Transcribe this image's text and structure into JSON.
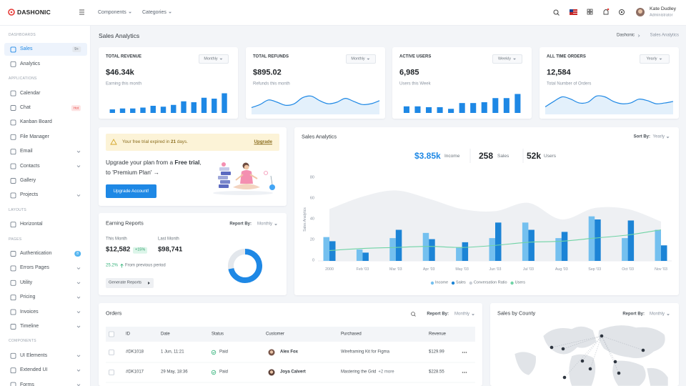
{
  "header": {
    "brand": "DASHONIC",
    "menus": [
      "Components",
      "Categories"
    ],
    "user_name": "Kate Dudley",
    "user_role": "Administrator"
  },
  "sidebar": [
    {
      "section": "DASHBOARDS",
      "items": [
        {
          "label": "Sales",
          "badge": "9+",
          "active": true
        },
        {
          "label": "Analytics"
        }
      ]
    },
    {
      "section": "APPLICATIONS",
      "items": [
        {
          "label": "Calendar"
        },
        {
          "label": "Chat",
          "badge": "Hot"
        },
        {
          "label": "Kanban Board"
        },
        {
          "label": "File Manager"
        },
        {
          "label": "Email",
          "expandable": true
        },
        {
          "label": "Contacts",
          "expandable": true
        },
        {
          "label": "Gallery"
        },
        {
          "label": "Projects",
          "expandable": true
        }
      ]
    },
    {
      "section": "LAYOUTS",
      "items": [
        {
          "label": "Horizontal"
        }
      ]
    },
    {
      "section": "PAGES",
      "items": [
        {
          "label": "Authentication",
          "badge": "8"
        },
        {
          "label": "Errors Pages",
          "expandable": true
        },
        {
          "label": "Utility",
          "expandable": true
        },
        {
          "label": "Pricing",
          "expandable": true
        },
        {
          "label": "Invoices",
          "expandable": true
        },
        {
          "label": "Timeline",
          "expandable": true
        }
      ]
    },
    {
      "section": "COMPONENTS",
      "items": [
        {
          "label": "UI Elements",
          "expandable": true
        },
        {
          "label": "Extended UI",
          "expandable": true
        },
        {
          "label": "Forms",
          "expandable": true
        }
      ]
    }
  ],
  "page": {
    "title": "Sales Analytics",
    "breadcrumb": [
      "Dashonic",
      "Sales Analytics"
    ]
  },
  "stats": [
    {
      "title": "TOTAL REVENUE",
      "period": "Monthly",
      "value": "$46.34k",
      "caption": "Earning this month"
    },
    {
      "title": "TOTAL REFUNDS",
      "period": "Monthly",
      "value": "$895.02",
      "caption": "Refunds this month"
    },
    {
      "title": "ACTIVE USERS",
      "period": "Weekly",
      "value": "6,985",
      "caption": "Users this Week"
    },
    {
      "title": "ALL TIME ORDERS",
      "period": "Yearly",
      "value": "12,584",
      "caption": "Total Number of Orders"
    }
  ],
  "trial": {
    "notice": [
      "Your free trial expired in ",
      "21",
      " days."
    ],
    "link": "Upgrade",
    "heading": [
      "Upgrade your plan from a ",
      "Free trial",
      ", to 'Premium Plan' →"
    ],
    "button": "Upgrade Account!"
  },
  "earnings": {
    "title": "Earning Reports",
    "report_label": "Report By:",
    "report_period": "Monthly",
    "this_month_label": "This Month",
    "this_month": "$12,582",
    "change": "+15%",
    "last_month_label": "Last Month",
    "last_month": "$98,741",
    "growth": "25.2%",
    "growth_caption": "From previous period",
    "button": "Generate Reports"
  },
  "sales": {
    "sort_label": "Sort By:",
    "sort": "Yearly",
    "summary": [
      {
        "value": "$3.85k",
        "label": "Income"
      },
      {
        "value": "258",
        "label": "Sales"
      },
      {
        "value": "52k",
        "label": "Users"
      }
    ]
  },
  "orders": {
    "title": "Orders",
    "report_label": "Report By:",
    "report_period": "Monthly",
    "columns": [
      "ID",
      "Date",
      "Status",
      "Customer",
      "Purchased",
      "Revenue"
    ],
    "rows": [
      {
        "id": "#DK1018",
        "date": "1 Jun, 11:21",
        "status": "Paid",
        "customer": "Alex Fox",
        "purchased": "Wireframing Kit for Figma",
        "revenue": "$129.99"
      },
      {
        "id": "#DK1017",
        "date": "29 May, 18:36",
        "status": "Paid",
        "customer": "Joya Calvert",
        "purchased": "Mastering the Grid",
        "more": "+2 more",
        "revenue": "$228.55"
      }
    ]
  },
  "county": {
    "title": "Sales by County",
    "report_label": "Report By:",
    "report_period": "Monthly"
  },
  "chart_data": [
    {
      "type": "bar",
      "values": [
        4,
        5,
        5,
        6,
        8,
        7,
        9,
        13,
        12,
        17,
        16,
        22
      ],
      "ylim": [
        0,
        24
      ],
      "color": "#1e88e5"
    },
    {
      "type": "area",
      "values": [
        7,
        11,
        17,
        14,
        10,
        12,
        20,
        22,
        16,
        12,
        14,
        19,
        15,
        11,
        12,
        16
      ],
      "ylim": [
        0,
        28
      ],
      "color": "#1e88e5"
    },
    {
      "type": "bar",
      "values": [
        8,
        8,
        7,
        7,
        5,
        12,
        12,
        13,
        18,
        18,
        23
      ],
      "ylim": [
        0,
        26
      ],
      "color": "#1e88e5"
    },
    {
      "type": "area",
      "values": [
        8,
        15,
        21,
        18,
        13,
        14,
        22,
        21,
        15,
        12,
        13,
        18,
        16,
        12,
        13,
        15
      ],
      "ylim": [
        0,
        28
      ],
      "color": "#1e88e5"
    },
    {
      "type": "mixed",
      "title": "Sales Analytics",
      "ylabel": "Sales Analytics",
      "categories": [
        "2000",
        "Feb '03",
        "Mar '03",
        "Apr '03",
        "May '03",
        "Jun '03",
        "Jul '03",
        "Aug '03",
        "Sep '03",
        "Oct '03",
        "Nov '03"
      ],
      "ylim": [
        0,
        80
      ],
      "yticks": [
        0,
        20,
        40,
        60,
        80
      ],
      "grid": false,
      "legend": "bottom",
      "series": [
        {
          "name": "Income",
          "type": "bar",
          "color": "#74c0ef",
          "values": [
            23,
            11,
            22,
            27,
            13,
            22,
            37,
            22,
            43,
            22,
            30
          ]
        },
        {
          "name": "Sales",
          "type": "bar",
          "color": "#1c84d6",
          "values": [
            19,
            8,
            30,
            21,
            18,
            37,
            30,
            28,
            40,
            39,
            15
          ]
        },
        {
          "name": "Conversation Ratio",
          "type": "area",
          "color": "#eef0f3",
          "values": [
            50,
            62,
            68,
            60,
            50,
            48,
            56,
            40,
            51,
            50,
            38
          ]
        },
        {
          "name": "Users",
          "type": "line",
          "color": "#6fd3a5",
          "values": [
            10,
            12,
            13,
            14,
            13,
            15,
            18,
            19,
            22,
            25,
            30
          ]
        }
      ]
    },
    {
      "type": "pie",
      "donut": true,
      "values": [
        72,
        28
      ],
      "colors": [
        "#1e88e5",
        "#e3e7ec"
      ]
    }
  ]
}
